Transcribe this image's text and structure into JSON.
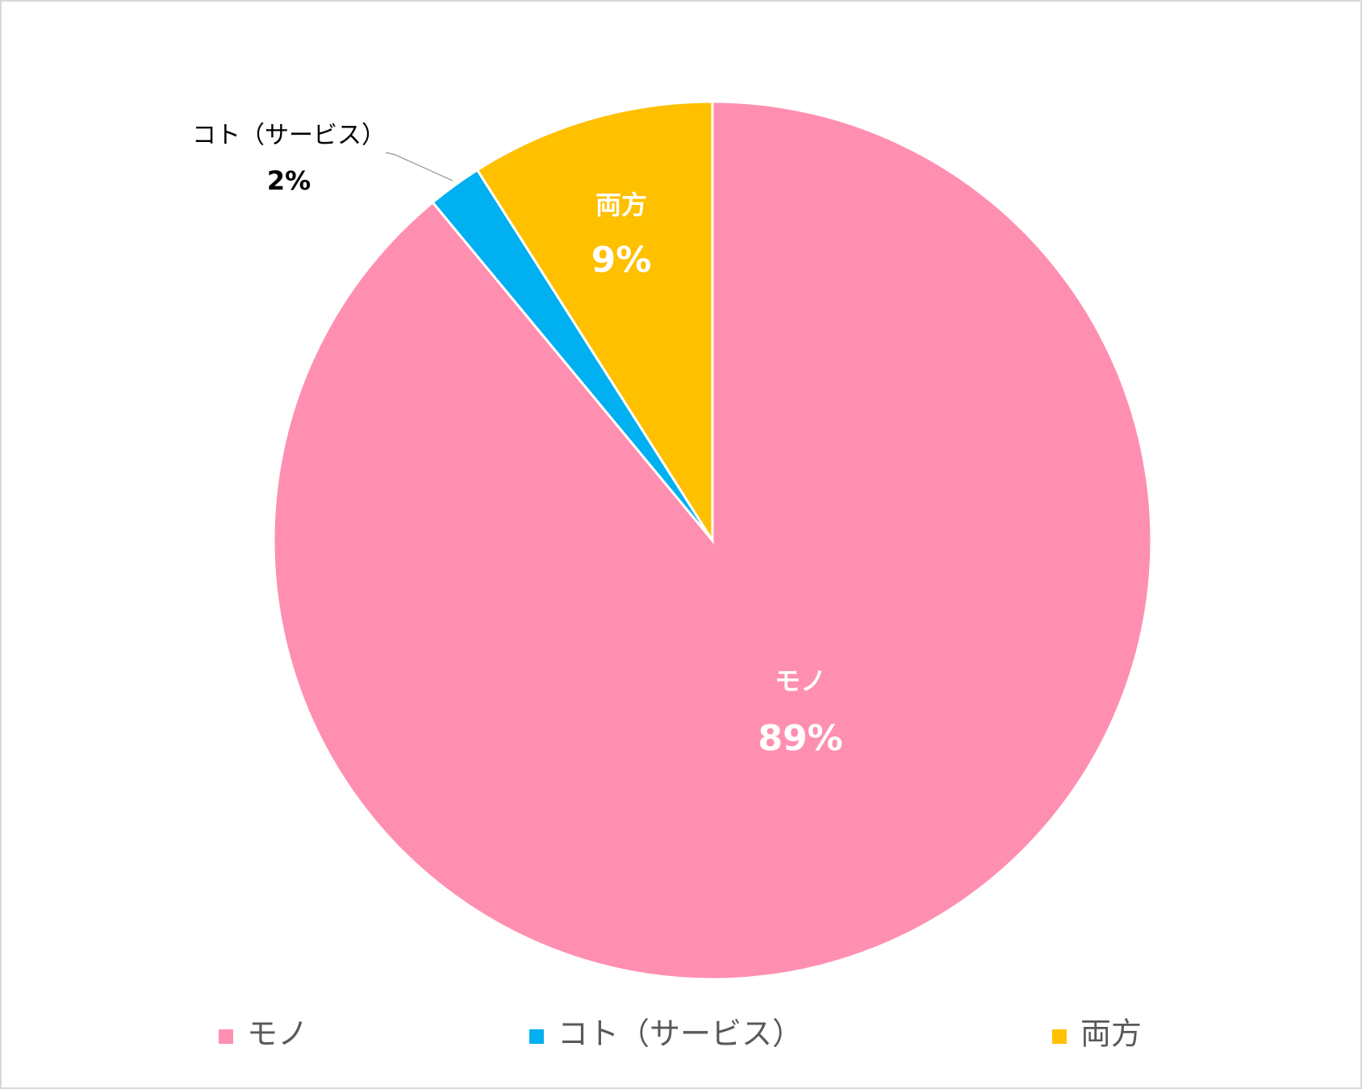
{
  "chart_data": {
    "type": "pie",
    "categories": [
      "モノ",
      "コト（サービス）",
      "両方"
    ],
    "values": [
      89,
      2,
      9
    ],
    "value_labels": [
      "89%",
      "2%",
      "9%"
    ],
    "colors": [
      "#ff8fb1",
      "#00b0f0",
      "#ffc000"
    ],
    "legend": "bottom"
  }
}
